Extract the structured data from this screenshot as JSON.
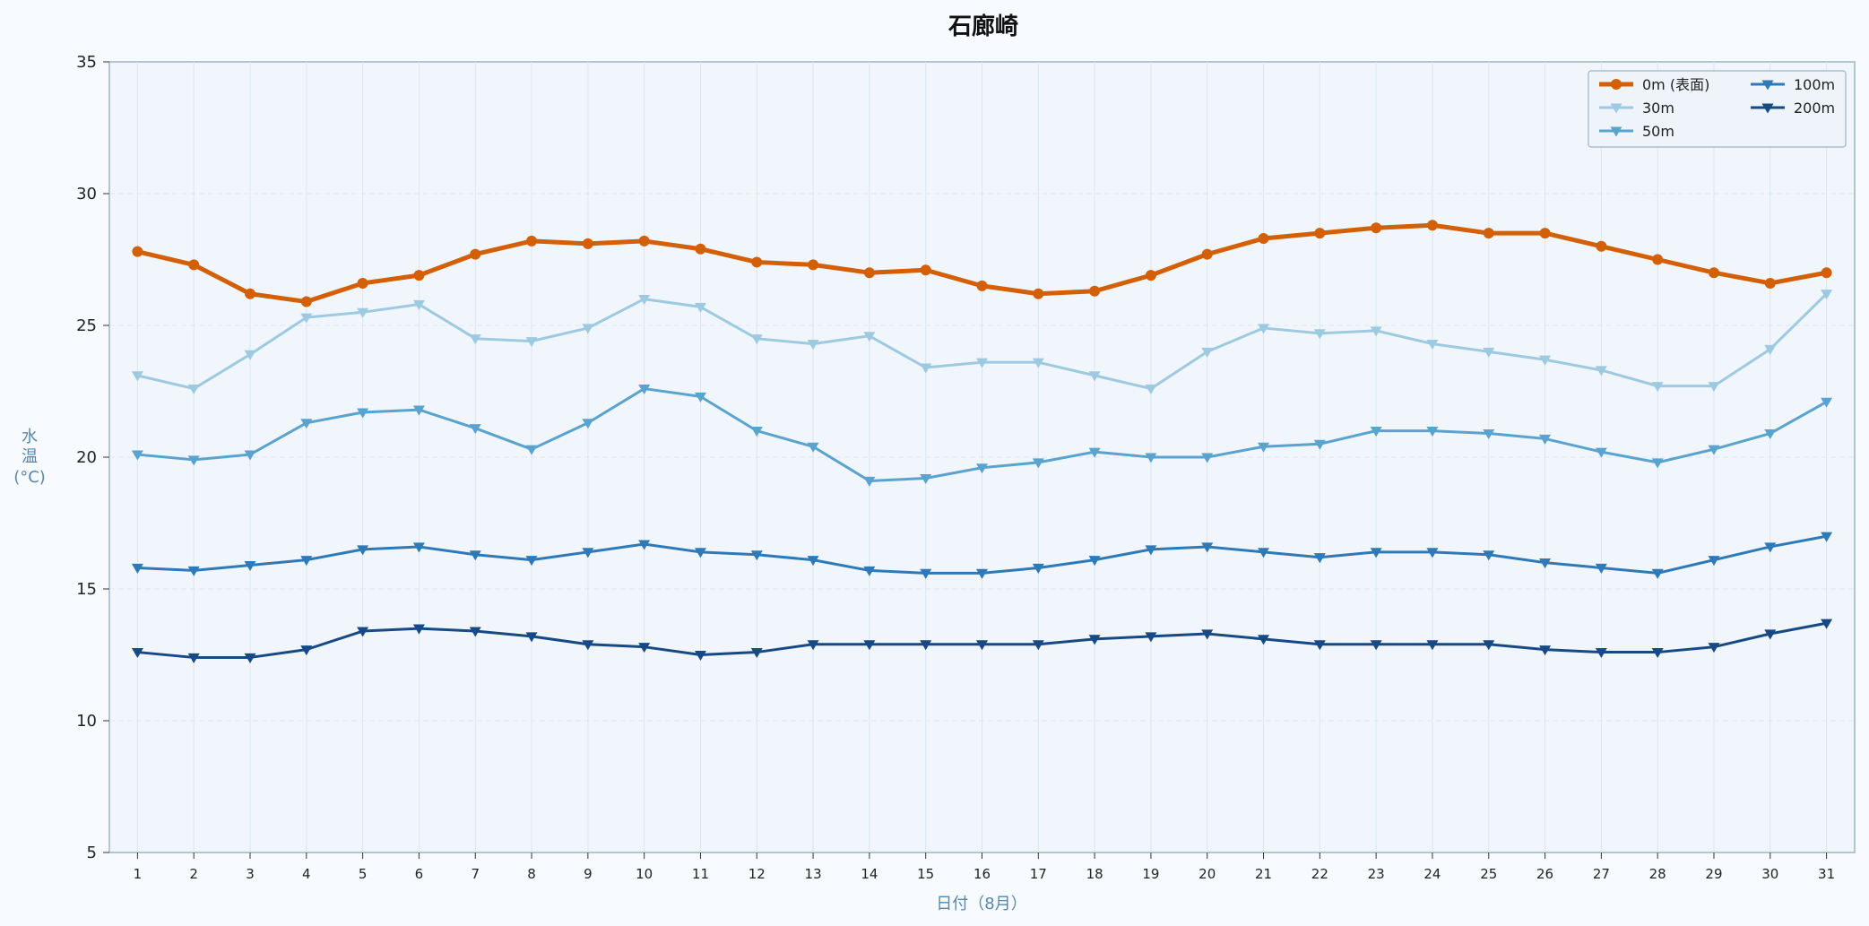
{
  "chart_data": {
    "type": "line",
    "title": "石廊崎",
    "xlabel": "日付（8月）",
    "ylabel_lines": [
      "水",
      "温",
      "(°C)"
    ],
    "xlim": [
      0.5,
      31.5
    ],
    "ylim": [
      5,
      35
    ],
    "yticks": [
      5,
      10,
      15,
      20,
      25,
      30,
      35
    ],
    "grid": true,
    "legend_position": "top-right",
    "x": [
      1,
      2,
      3,
      4,
      5,
      6,
      7,
      8,
      9,
      10,
      11,
      12,
      13,
      14,
      15,
      16,
      17,
      18,
      19,
      20,
      21,
      22,
      23,
      24,
      25,
      26,
      27,
      28,
      29,
      30,
      31
    ],
    "series": [
      {
        "name": "0m (表面)",
        "color": "#d35f06",
        "marker": "circle",
        "width": 5,
        "values": [
          27.8,
          27.3,
          26.2,
          25.9,
          26.6,
          26.9,
          27.7,
          28.2,
          28.1,
          28.2,
          27.9,
          27.4,
          27.3,
          27.0,
          27.1,
          26.5,
          26.2,
          26.3,
          26.9,
          27.7,
          28.3,
          28.5,
          28.7,
          28.8,
          28.5,
          28.5,
          28.0,
          27.5,
          27.0,
          26.6,
          27.0
        ]
      },
      {
        "name": "30m",
        "color": "#9ecae1",
        "marker": "triangle-down",
        "width": 3,
        "values": [
          23.1,
          22.6,
          23.9,
          25.3,
          25.5,
          25.8,
          24.5,
          24.4,
          24.9,
          26.0,
          25.7,
          24.5,
          24.3,
          24.6,
          23.4,
          23.6,
          23.6,
          23.1,
          22.6,
          24.0,
          24.9,
          24.7,
          24.8,
          24.3,
          24.0,
          23.7,
          23.3,
          22.7,
          22.7,
          24.1,
          26.2
        ]
      },
      {
        "name": "50m",
        "color": "#5aa3cf",
        "marker": "triangle-down",
        "width": 3,
        "values": [
          20.1,
          19.9,
          20.1,
          21.3,
          21.7,
          21.8,
          21.1,
          20.3,
          21.3,
          22.6,
          22.3,
          21.0,
          20.4,
          19.1,
          19.2,
          19.6,
          19.8,
          20.2,
          20.0,
          20.0,
          20.4,
          20.5,
          21.0,
          21.0,
          20.9,
          20.7,
          20.2,
          19.8,
          20.3,
          20.9,
          22.1
        ]
      },
      {
        "name": "100m",
        "color": "#2e79b8",
        "marker": "triangle-down",
        "width": 3,
        "values": [
          15.8,
          15.7,
          15.9,
          16.1,
          16.5,
          16.6,
          16.3,
          16.1,
          16.4,
          16.7,
          16.4,
          16.3,
          16.1,
          15.7,
          15.6,
          15.6,
          15.8,
          16.1,
          16.5,
          16.6,
          16.4,
          16.2,
          16.4,
          16.4,
          16.3,
          16.0,
          15.8,
          15.6,
          16.1,
          16.6,
          17.0
        ]
      },
      {
        "name": "200m",
        "color": "#174a85",
        "marker": "triangle-down",
        "width": 3,
        "values": [
          12.6,
          12.4,
          12.4,
          12.7,
          13.4,
          13.5,
          13.4,
          13.2,
          12.9,
          12.8,
          12.5,
          12.6,
          12.9,
          12.9,
          12.9,
          12.9,
          12.9,
          13.1,
          13.2,
          13.3,
          13.1,
          12.9,
          12.9,
          12.9,
          12.9,
          12.7,
          12.6,
          12.6,
          12.8,
          13.3,
          13.7
        ]
      }
    ]
  }
}
